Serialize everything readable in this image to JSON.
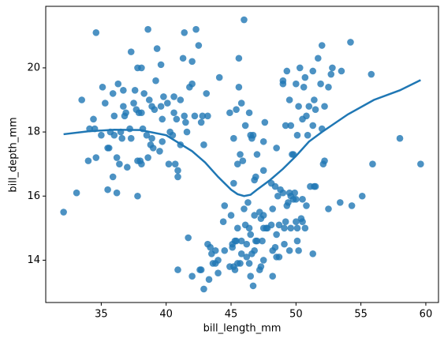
{
  "chart_data": {
    "type": "scatter",
    "xlabel": "bill_length_mm",
    "ylabel": "bill_depth_mm",
    "xlim": [
      30.725,
      60.975
    ],
    "ylim": [
      12.68,
      21.92
    ],
    "xticks": [
      35,
      40,
      45,
      50,
      55,
      60
    ],
    "yticks": [
      14,
      16,
      18,
      20
    ],
    "grid": false,
    "color": "#1f77b4",
    "points": [
      [
        32.1,
        15.5
      ],
      [
        33.1,
        16.1
      ],
      [
        33.5,
        19.0
      ],
      [
        34.0,
        17.1
      ],
      [
        34.1,
        18.1
      ],
      [
        34.4,
        18.4
      ],
      [
        34.5,
        18.1
      ],
      [
        34.6,
        21.1
      ],
      [
        34.6,
        17.2
      ],
      [
        35.0,
        17.9
      ],
      [
        35.1,
        19.4
      ],
      [
        35.3,
        18.9
      ],
      [
        35.5,
        17.5
      ],
      [
        35.5,
        16.2
      ],
      [
        35.6,
        17.5
      ],
      [
        35.7,
        18.0
      ],
      [
        35.9,
        19.2
      ],
      [
        36.0,
        18.5
      ],
      [
        36.0,
        17.9
      ],
      [
        36.2,
        17.2
      ],
      [
        36.2,
        16.1
      ],
      [
        36.3,
        19.5
      ],
      [
        36.4,
        17.0
      ],
      [
        36.5,
        18.0
      ],
      [
        36.6,
        17.8
      ],
      [
        36.7,
        18.8
      ],
      [
        36.7,
        19.3
      ],
      [
        36.8,
        18.5
      ],
      [
        36.9,
        18.6
      ],
      [
        37.0,
        16.9
      ],
      [
        37.2,
        18.1
      ],
      [
        37.3,
        20.5
      ],
      [
        37.3,
        17.8
      ],
      [
        37.5,
        18.9
      ],
      [
        37.6,
        19.3
      ],
      [
        37.7,
        18.7
      ],
      [
        37.8,
        20.0
      ],
      [
        37.8,
        17.1
      ],
      [
        37.9,
        18.6
      ],
      [
        38.1,
        18.6
      ],
      [
        38.1,
        17.0
      ],
      [
        38.2,
        18.1
      ],
      [
        38.3,
        19.2
      ],
      [
        38.5,
        17.9
      ],
      [
        38.6,
        21.2
      ],
      [
        38.6,
        17.2
      ],
      [
        38.7,
        19.0
      ],
      [
        38.8,
        17.6
      ],
      [
        38.9,
        18.8
      ],
      [
        39.0,
        17.5
      ],
      [
        39.1,
        18.7
      ],
      [
        39.2,
        19.6
      ],
      [
        39.3,
        20.6
      ],
      [
        39.5,
        17.4
      ],
      [
        39.6,
        18.8
      ],
      [
        39.7,
        18.4
      ],
      [
        39.8,
        19.1
      ],
      [
        40.1,
        18.9
      ],
      [
        40.2,
        17.0
      ],
      [
        40.3,
        18.0
      ],
      [
        40.5,
        17.9
      ],
      [
        40.6,
        18.6
      ],
      [
        40.7,
        17.0
      ],
      [
        40.8,
        18.4
      ],
      [
        40.9,
        16.6
      ],
      [
        41.1,
        17.6
      ],
      [
        41.1,
        19.0
      ],
      [
        41.3,
        20.3
      ],
      [
        41.4,
        18.5
      ],
      [
        41.5,
        18.3
      ],
      [
        41.6,
        18.0
      ],
      [
        42.0,
        19.5
      ],
      [
        42.2,
        18.5
      ],
      [
        42.3,
        21.2
      ],
      [
        42.5,
        20.7
      ],
      [
        42.7,
        18.3
      ],
      [
        42.8,
        18.5
      ],
      [
        42.9,
        17.6
      ],
      [
        43.1,
        19.2
      ],
      [
        43.2,
        18.5
      ],
      [
        44.1,
        19.7
      ],
      [
        44.9,
        18.6
      ],
      [
        45.6,
        20.3
      ],
      [
        45.8,
        18.9
      ],
      [
        46.0,
        21.5
      ],
      [
        46.5,
        17.9
      ],
      [
        46.9,
        16.6
      ],
      [
        35.9,
        16.6
      ],
      [
        37.8,
        16.0
      ],
      [
        38.0,
        17.1
      ],
      [
        38.9,
        17.8
      ],
      [
        39.7,
        17.7
      ],
      [
        40.9,
        16.8
      ],
      [
        41.8,
        19.4
      ],
      [
        40.6,
        19.1
      ],
      [
        39.6,
        20.1
      ],
      [
        38.1,
        20.0
      ],
      [
        42.0,
        20.2
      ],
      [
        41.4,
        21.1
      ],
      [
        45.2,
        17.8
      ],
      [
        45.4,
        18.7
      ],
      [
        45.5,
        17.0
      ],
      [
        45.7,
        17.3
      ],
      [
        46.1,
        18.2
      ],
      [
        46.4,
        18.6
      ],
      [
        46.6,
        17.8
      ],
      [
        46.7,
        17.9
      ],
      [
        46.8,
        16.5
      ],
      [
        47.0,
        17.3
      ],
      [
        47.5,
        16.8
      ],
      [
        47.6,
        18.3
      ],
      [
        48.1,
        16.4
      ],
      [
        48.5,
        17.5
      ],
      [
        49.0,
        19.5
      ],
      [
        49.2,
        18.2
      ],
      [
        49.5,
        19.0
      ],
      [
        49.6,
        18.2
      ],
      [
        49.7,
        17.3
      ],
      [
        49.8,
        17.3
      ],
      [
        50.0,
        19.5
      ],
      [
        50.1,
        17.9
      ],
      [
        50.2,
        18.8
      ],
      [
        50.3,
        20.0
      ],
      [
        50.5,
        18.4
      ],
      [
        50.6,
        19.4
      ],
      [
        50.8,
        18.5
      ],
      [
        50.9,
        17.9
      ],
      [
        51.0,
        18.8
      ],
      [
        51.3,
        19.9
      ],
      [
        51.4,
        19.0
      ],
      [
        51.5,
        18.7
      ],
      [
        51.7,
        20.3
      ],
      [
        51.9,
        19.5
      ],
      [
        52.0,
        18.1
      ],
      [
        52.2,
        18.8
      ],
      [
        52.5,
        19.4
      ],
      [
        52.7,
        19.8
      ],
      [
        52.8,
        20.0
      ],
      [
        53.5,
        19.9
      ],
      [
        54.2,
        20.8
      ],
      [
        55.8,
        19.8
      ],
      [
        58.0,
        17.8
      ],
      [
        52.0,
        20.7
      ],
      [
        49.0,
        19.6
      ],
      [
        50.7,
        19.7
      ],
      [
        51.3,
        18.2
      ],
      [
        51.4,
        16.3
      ],
      [
        45.9,
        17.1
      ],
      [
        45.6,
        19.4
      ],
      [
        47.5,
        17.7
      ],
      [
        49.3,
        19.9
      ],
      [
        40.9,
        13.7
      ],
      [
        41.7,
        14.7
      ],
      [
        42.0,
        13.5
      ],
      [
        42.7,
        13.7
      ],
      [
        42.9,
        13.1
      ],
      [
        43.2,
        14.5
      ],
      [
        43.3,
        13.4
      ],
      [
        43.4,
        14.4
      ],
      [
        43.5,
        14.2
      ],
      [
        43.6,
        13.9
      ],
      [
        43.8,
        13.9
      ],
      [
        44.0,
        13.6
      ],
      [
        44.4,
        15.2
      ],
      [
        44.5,
        14.3
      ],
      [
        44.9,
        13.8
      ],
      [
        45.1,
        14.5
      ],
      [
        45.2,
        13.8
      ],
      [
        45.2,
        16.4
      ],
      [
        45.3,
        13.7
      ],
      [
        45.4,
        14.6
      ],
      [
        45.5,
        13.9
      ],
      [
        45.5,
        15.0
      ],
      [
        45.7,
        13.9
      ],
      [
        45.8,
        14.2
      ],
      [
        45.8,
        14.6
      ],
      [
        46.1,
        15.1
      ],
      [
        46.2,
        14.1
      ],
      [
        46.2,
        14.5
      ],
      [
        46.3,
        15.8
      ],
      [
        46.4,
        15.0
      ],
      [
        46.5,
        13.5
      ],
      [
        46.5,
        14.8
      ],
      [
        46.6,
        14.2
      ],
      [
        46.8,
        14.3
      ],
      [
        46.8,
        15.4
      ],
      [
        46.9,
        14.6
      ],
      [
        47.2,
        13.7
      ],
      [
        47.2,
        15.5
      ],
      [
        47.3,
        15.3
      ],
      [
        47.4,
        14.6
      ],
      [
        47.5,
        14.0
      ],
      [
        47.5,
        15.0
      ],
      [
        47.7,
        15.0
      ],
      [
        47.8,
        15.0
      ],
      [
        48.1,
        15.1
      ],
      [
        48.2,
        14.3
      ],
      [
        48.2,
        15.6
      ],
      [
        48.4,
        14.4
      ],
      [
        48.4,
        16.3
      ],
      [
        48.5,
        14.1
      ],
      [
        48.6,
        16.0
      ],
      [
        48.7,
        14.1
      ],
      [
        48.7,
        15.1
      ],
      [
        48.8,
        16.2
      ],
      [
        49.0,
        16.1
      ],
      [
        49.1,
        14.5
      ],
      [
        49.1,
        15.0
      ],
      [
        49.2,
        15.2
      ],
      [
        49.3,
        15.7
      ],
      [
        49.4,
        15.8
      ],
      [
        49.5,
        16.1
      ],
      [
        49.6,
        15.0
      ],
      [
        49.6,
        16.0
      ],
      [
        49.8,
        15.9
      ],
      [
        49.9,
        16.1
      ],
      [
        50.0,
        15.2
      ],
      [
        50.0,
        15.9
      ],
      [
        50.1,
        15.0
      ],
      [
        50.2,
        14.3
      ],
      [
        50.4,
        15.3
      ],
      [
        50.5,
        15.2
      ],
      [
        50.5,
        15.9
      ],
      [
        50.7,
        15.0
      ],
      [
        50.8,
        15.7
      ],
      [
        51.1,
        16.3
      ],
      [
        51.3,
        14.2
      ],
      [
        51.5,
        16.3
      ],
      [
        52.1,
        17.0
      ],
      [
        52.2,
        17.1
      ],
      [
        52.5,
        15.6
      ],
      [
        53.4,
        15.8
      ],
      [
        54.3,
        15.7
      ],
      [
        55.1,
        16.0
      ],
      [
        55.9,
        17.0
      ],
      [
        59.6,
        17.0
      ],
      [
        44.5,
        15.7
      ],
      [
        45.0,
        15.4
      ],
      [
        45.1,
        14.4
      ],
      [
        46.0,
        15.6
      ],
      [
        43.8,
        14.3
      ],
      [
        42.6,
        13.7
      ],
      [
        44.0,
        14.0
      ],
      [
        47.3,
        13.8
      ],
      [
        46.7,
        13.2
      ],
      [
        48.2,
        13.5
      ],
      [
        48.5,
        14.8
      ],
      [
        49.5,
        14.3
      ],
      [
        50.1,
        14.6
      ],
      [
        47.5,
        15.4
      ],
      [
        46.4,
        13.9
      ],
      [
        45.3,
        14.6
      ],
      [
        47.0,
        14.6
      ]
    ],
    "fit": {
      "x": [
        32.1,
        34,
        36,
        38,
        40,
        42,
        43,
        44,
        45,
        45.5,
        46,
        46.5,
        47,
        48,
        49,
        50,
        51,
        52,
        54,
        56,
        58,
        59.6
      ],
      "y": [
        17.93,
        18.02,
        18.07,
        18.06,
        17.9,
        17.4,
        17.05,
        16.6,
        16.2,
        16.06,
        16.0,
        16.04,
        16.2,
        16.5,
        16.85,
        17.25,
        17.7,
        18.0,
        18.55,
        19.0,
        19.3,
        19.62
      ]
    }
  }
}
